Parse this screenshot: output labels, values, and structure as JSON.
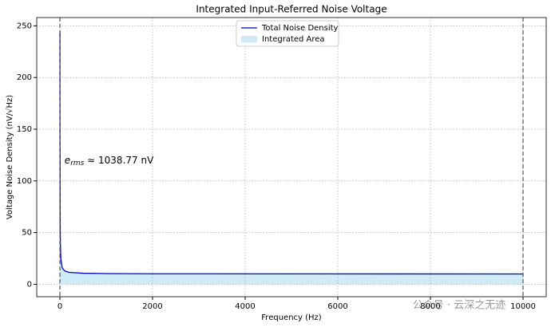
{
  "chart_data": {
    "type": "line",
    "title": "Integrated Input-Referred Noise Voltage",
    "xlabel": "Frequency (Hz)",
    "ylabel": "Voltage Noise Density (nV/√Hz)",
    "x": [
      1,
      2,
      5,
      10,
      20,
      50,
      100,
      200,
      500,
      1000,
      2000,
      5000,
      10000
    ],
    "series": [
      {
        "name": "Total Noise Density",
        "color": "#0000cc",
        "kind": "line",
        "values": [
          245,
          150,
          70,
          40,
          25,
          16,
          13,
          11.5,
          10.7,
          10.4,
          10.2,
          10.1,
          10
        ]
      },
      {
        "name": "Integrated Area",
        "color": "#87ceeb",
        "kind": "area",
        "opacity": 0.4,
        "values": [
          245,
          150,
          70,
          40,
          25,
          16,
          13,
          11.5,
          10.7,
          10.4,
          10.2,
          10.1,
          10
        ]
      }
    ],
    "vlines": [
      1,
      10000
    ],
    "annotation": {
      "symbol": "e",
      "subscript": "rms",
      "text": " ≈ 1038.77 nV",
      "x": 100,
      "y": 120
    },
    "xlim": [
      -500,
      10500
    ],
    "ylim": [
      -12,
      258
    ],
    "xticks": [
      0,
      2000,
      4000,
      6000,
      8000,
      10000
    ],
    "yticks": [
      0,
      50,
      100,
      150,
      200,
      250
    ],
    "grid": true,
    "legend": "upper center",
    "watermark": "公众号 · 云深之无迹"
  }
}
